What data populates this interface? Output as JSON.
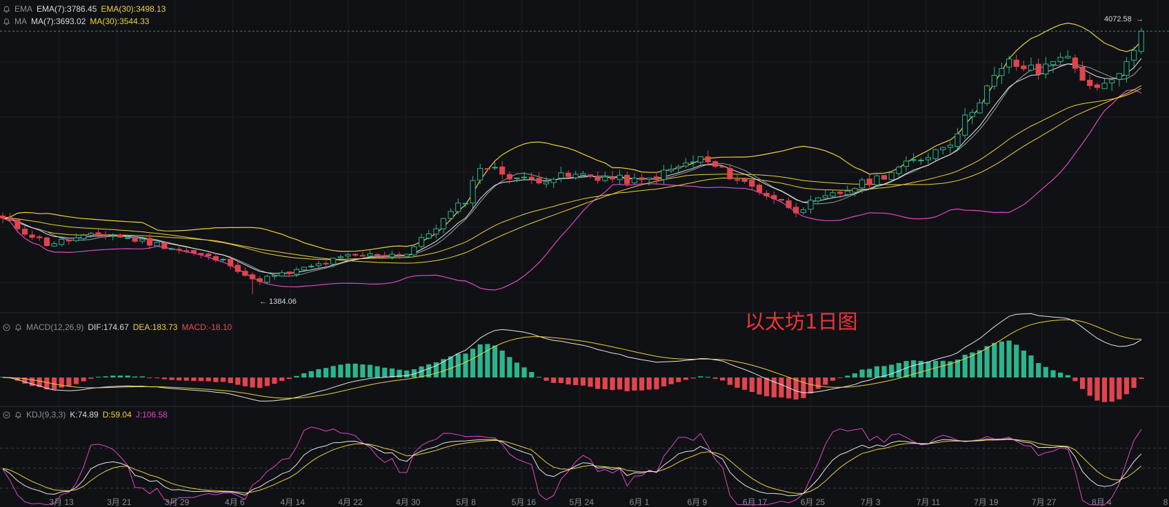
{
  "indicators": {
    "ema": {
      "name": "EMA",
      "fast": "EMA(7):3786.45",
      "slow": "EMA(30):3498.13"
    },
    "ma": {
      "name": "MA",
      "fast": "MA(7):3693.02",
      "slow": "MA(30):3544.33"
    },
    "macd": {
      "name": "MACD(12,26,9)",
      "dif": "DIF:174.67",
      "dea": "DEA:183.73",
      "macd": "MACD:-18.10"
    },
    "kdj": {
      "name": "KDJ(9,3,3)",
      "k": "K:74.89",
      "d": "D:59.04",
      "j": "J:106.58"
    }
  },
  "annotations": {
    "last_price": "4072.58",
    "low_marker": "← 1384.06",
    "watermark": "以太坊1日图"
  },
  "colors": {
    "up": "#2bb58f",
    "down": "#e0454e",
    "ema_fast": "#e9e9e9",
    "ema_slow": "#f0d23c",
    "boll": "#e048c8",
    "boll_upper": "#f0d23c"
  },
  "chart_data": {
    "type": "candlestick",
    "title": "以太坊1日图",
    "x_ticks": [
      "3月 13",
      "3月 21",
      "3月 29",
      "4月 6",
      "4月 14",
      "4月 22",
      "4月 30",
      "5月 8",
      "5月 16",
      "5月 24",
      "6月 1",
      "6月 9",
      "6月 17",
      "6月 25",
      "7月 3",
      "7月 11",
      "7月 19",
      "7月 27",
      "8月 4",
      "8"
    ],
    "price_anchors": [
      {
        "date": "Mar 6",
        "close": 2150
      },
      {
        "date": "Mar 12",
        "close": 1900
      },
      {
        "date": "Mar 20",
        "close": 2000
      },
      {
        "date": "Mar 28",
        "close": 1880
      },
      {
        "date": "Apr 6",
        "close": 1700
      },
      {
        "date": "Apr 9",
        "close": 1520
      },
      {
        "date": "Apr 14",
        "close": 1600
      },
      {
        "date": "Apr 22",
        "close": 1770
      },
      {
        "date": "Apr 30",
        "close": 1800
      },
      {
        "date": "May 8",
        "close": 2350
      },
      {
        "date": "May 10",
        "close": 2700
      },
      {
        "date": "May 16",
        "close": 2550
      },
      {
        "date": "May 24",
        "close": 2600
      },
      {
        "date": "Jun 1",
        "close": 2530
      },
      {
        "date": "Jun 9",
        "close": 2770
      },
      {
        "date": "Jun 13",
        "close": 2600
      },
      {
        "date": "Jun 22",
        "close": 2250
      },
      {
        "date": "Jun 28",
        "close": 2420
      },
      {
        "date": "Jul 3",
        "close": 2570
      },
      {
        "date": "Jul 9",
        "close": 2770
      },
      {
        "date": "Jul 13",
        "close": 2950
      },
      {
        "date": "Jul 18",
        "close": 3500
      },
      {
        "date": "Jul 21",
        "close": 3750
      },
      {
        "date": "Jul 25",
        "close": 3650
      },
      {
        "date": "Jul 28",
        "close": 3850
      },
      {
        "date": "Aug 2",
        "close": 3450
      },
      {
        "date": "Aug 5",
        "close": 3600
      },
      {
        "date": "Aug 8",
        "close": 4072.58
      }
    ],
    "low": 1384.06,
    "last": 4072.58,
    "ylim": [
      1250,
      4250
    ]
  }
}
